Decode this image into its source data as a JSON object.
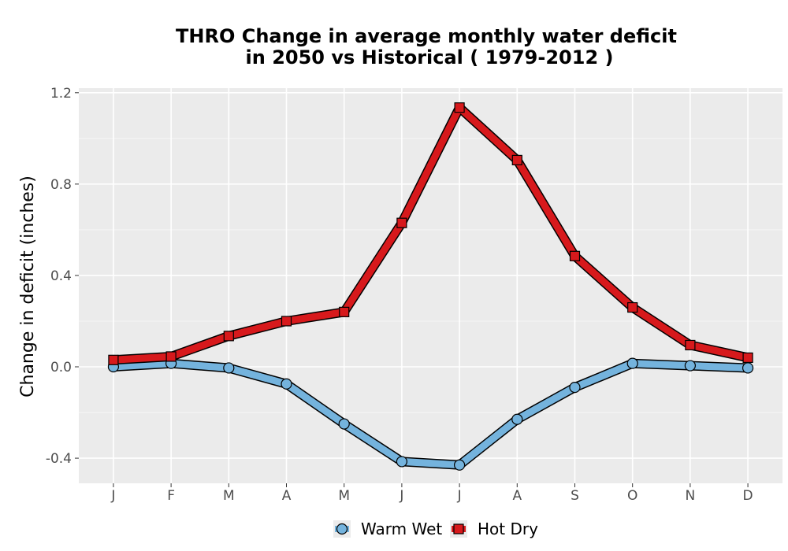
{
  "chart_data": {
    "type": "line",
    "title_lines": [
      "THRO  Change in average monthly water deficit",
      "in 2050 vs Historical ( 1979-2012 )"
    ],
    "xlabel": "",
    "ylabel": "Change in deficit (inches)",
    "categories": [
      "J",
      "F",
      "M",
      "A",
      "M",
      "J",
      "J",
      "A",
      "S",
      "O",
      "N",
      "D"
    ],
    "yticks": [
      "-0.4",
      "0.0",
      "0.4",
      "0.8",
      "1.2"
    ],
    "ylim": [
      -0.51,
      1.22
    ],
    "grid": true,
    "legend_position": "bottom",
    "series": [
      {
        "name": "Warm Wet",
        "marker": "circle",
        "color": "#74b3dd",
        "values": [
          0.0,
          0.015,
          -0.005,
          -0.075,
          -0.25,
          -0.415,
          -0.43,
          -0.23,
          -0.09,
          0.015,
          0.005,
          -0.005
        ]
      },
      {
        "name": "Hot Dry",
        "marker": "square",
        "color": "#d7191c",
        "values": [
          0.03,
          0.045,
          0.135,
          0.2,
          0.24,
          0.63,
          1.135,
          0.905,
          0.485,
          0.26,
          0.095,
          0.04
        ]
      }
    ]
  }
}
